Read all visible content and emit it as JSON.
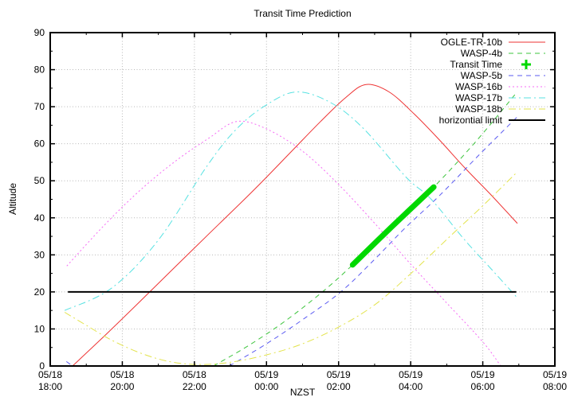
{
  "chart_data": {
    "type": "line",
    "title": "Transit Time Prediction",
    "xlabel": "NZST",
    "ylabel": "Altitude",
    "ylim": [
      0,
      90
    ],
    "xlim_hours": [
      0,
      14
    ],
    "grid": true,
    "legend_position": "top-right-inside",
    "y_ticks": [
      0,
      10,
      20,
      30,
      40,
      50,
      60,
      70,
      80,
      90
    ],
    "y_minor_step": 5,
    "x_minor_step_hours": 1,
    "x_ticks": [
      {
        "hours": 0,
        "date": "05/18",
        "time": "18:00"
      },
      {
        "hours": 2,
        "date": "05/18",
        "time": "20:00"
      },
      {
        "hours": 4,
        "date": "05/18",
        "time": "22:00"
      },
      {
        "hours": 6,
        "date": "05/19",
        "time": "00:00"
      },
      {
        "hours": 8,
        "date": "05/19",
        "time": "02:00"
      },
      {
        "hours": 10,
        "date": "05/19",
        "time": "04:00"
      },
      {
        "hours": 12,
        "date": "05/19",
        "time": "06:00"
      },
      {
        "hours": 14,
        "date": "05/19",
        "time": "08:00"
      }
    ],
    "colors": {
      "grid": "#b8b8b8",
      "axis": "#000000"
    },
    "series": [
      {
        "name": "OGLE-TR-10b",
        "color": "#ee3333",
        "style": "solid",
        "width": 1,
        "segments": [
          [
            [
              0.62,
              0
            ],
            [
              1.6,
              9
            ],
            [
              2.76,
              20
            ],
            [
              3.7,
              29
            ],
            [
              4.7,
              38.5
            ],
            [
              5.7,
              48
            ],
            [
              6.7,
              58
            ],
            [
              7.5,
              66
            ],
            [
              8.2,
              72.5
            ],
            [
              8.76,
              76
            ],
            [
              9.4,
              74
            ],
            [
              10.1,
              68
            ],
            [
              10.8,
              61
            ],
            [
              11.5,
              53.5
            ],
            [
              12.2,
              46.5
            ],
            [
              12.96,
              38.5
            ]
          ]
        ]
      },
      {
        "name": "WASP-4b",
        "color": "#3cc43c",
        "style": "dashed",
        "width": 1,
        "segments": [
          [
            [
              4.53,
              0
            ],
            [
              5.5,
              5.5
            ],
            [
              6.5,
              12
            ],
            [
              7.55,
              20
            ],
            [
              8.39,
              27.3
            ],
            [
              9.5,
              37.8
            ],
            [
              10.64,
              48.3
            ],
            [
              11.8,
              60.5
            ],
            [
              12.93,
              73.7
            ]
          ]
        ]
      },
      {
        "name": "Transit Time",
        "color": "#00d800",
        "style": "solid",
        "width": 7,
        "marker": "plus",
        "on_top": true,
        "segments": [
          [
            [
              8.39,
              27.3
            ],
            [
              9.5,
              37.8
            ],
            [
              10.64,
              48.3
            ]
          ]
        ]
      },
      {
        "name": "WASP-5b",
        "color": "#5b5bf2",
        "style": "dashed",
        "width": 1,
        "segments": [
          [
            [
              0.45,
              1.2
            ],
            [
              0.62,
              0
            ]
          ],
          [
            [
              4.97,
              0
            ],
            [
              6,
              6
            ],
            [
              7,
              12.5
            ],
            [
              8.06,
              20
            ],
            [
              8.98,
              28.6
            ],
            [
              9.82,
              37
            ],
            [
              10.8,
              46
            ],
            [
              11.9,
              57
            ],
            [
              12.98,
              67.5
            ]
          ]
        ]
      },
      {
        "name": "WASP-16b",
        "color": "#f56bf5",
        "style": "dotted",
        "width": 1,
        "segments": [
          [
            [
              0.46,
              27
            ],
            [
              1.5,
              38
            ],
            [
              2.5,
              47.5
            ],
            [
              3.5,
              55.5
            ],
            [
              4.4,
              61.5
            ],
            [
              5.17,
              66
            ],
            [
              6,
              64
            ],
            [
              7,
              58
            ],
            [
              8,
              49
            ],
            [
              9.05,
              38
            ],
            [
              10,
              27.5
            ],
            [
              11,
              17
            ],
            [
              12,
              6.5
            ],
            [
              12.5,
              0
            ]
          ]
        ]
      },
      {
        "name": "WASP-17b",
        "color": "#58e2e2",
        "style": "dashdot",
        "width": 1,
        "segments": [
          [
            [
              0.4,
              15
            ],
            [
              1.7,
              21
            ],
            [
              3,
              34
            ],
            [
              4.35,
              54
            ],
            [
              5.17,
              64
            ],
            [
              6,
              70.5
            ],
            [
              6.84,
              74
            ],
            [
              7.8,
              71
            ],
            [
              8.7,
              64
            ],
            [
              9.87,
              51
            ],
            [
              10.57,
              45
            ],
            [
              11.5,
              34
            ],
            [
              12.3,
              25.5
            ],
            [
              12.93,
              18.7
            ]
          ]
        ]
      },
      {
        "name": "WASP-18b",
        "color": "#e3e34b",
        "style": "dashdot",
        "width": 1,
        "segments": [
          [
            [
              0.4,
              14.5
            ],
            [
              1,
              11
            ],
            [
              1.7,
              7
            ],
            [
              2.5,
              3.5
            ],
            [
              3.3,
              1.2
            ],
            [
              4.1,
              0.4
            ],
            [
              5,
              1
            ],
            [
              6,
              3
            ],
            [
              7,
              6
            ],
            [
              8,
              10.5
            ],
            [
              9,
              16.5
            ],
            [
              9.93,
              24.3
            ],
            [
              11.19,
              35.9
            ],
            [
              11.92,
              42.5
            ],
            [
              12.96,
              52.4
            ]
          ]
        ]
      },
      {
        "name": "horizontial limit",
        "color": "#000000",
        "style": "solid",
        "width": 2,
        "segments": [
          [
            [
              0.49,
              20
            ],
            [
              12.93,
              20
            ]
          ]
        ]
      }
    ]
  }
}
